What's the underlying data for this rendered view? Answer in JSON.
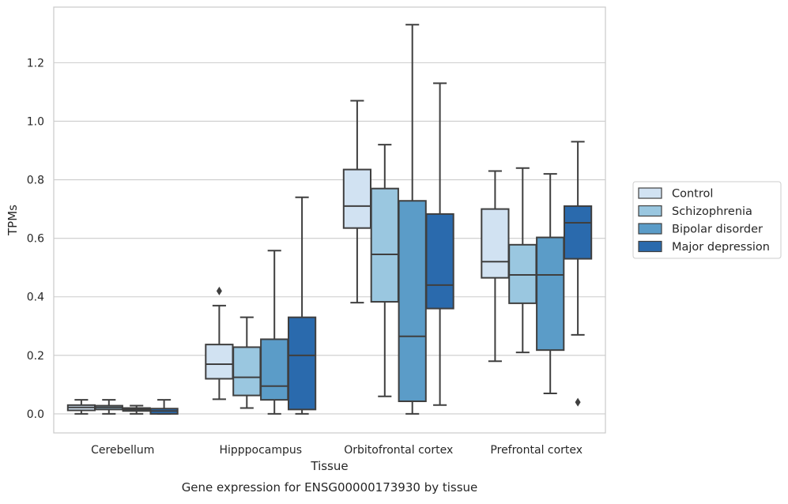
{
  "chart_data": {
    "type": "box",
    "title": "",
    "caption": "Gene expression for ENSG00000173930 by tissue",
    "xlabel": "Tissue",
    "ylabel": "TPMs",
    "ylim": [
      -0.065,
      1.39
    ],
    "yticks": [
      "0.0",
      "0.2",
      "0.4",
      "0.6",
      "0.8",
      "1.0",
      "1.2"
    ],
    "grid": "horizontal",
    "legend_position": "right",
    "categories": [
      "Cerebellum",
      "Hipppocampus",
      "Orbitofrontal cortex",
      "Prefrontal cortex"
    ],
    "series": [
      {
        "name": "Control",
        "color": "#d1e2f2",
        "boxes": [
          {
            "whislo": 0.0,
            "q1": 0.012,
            "med": 0.022,
            "q3": 0.03,
            "whishi": 0.048,
            "fliers": []
          },
          {
            "whislo": 0.05,
            "q1": 0.12,
            "med": 0.17,
            "q3": 0.237,
            "whishi": 0.37,
            "fliers": [
              0.42
            ]
          },
          {
            "whislo": 0.38,
            "q1": 0.635,
            "med": 0.71,
            "q3": 0.835,
            "whishi": 1.07,
            "fliers": []
          },
          {
            "whislo": 0.18,
            "q1": 0.465,
            "med": 0.52,
            "q3": 0.7,
            "whishi": 0.83,
            "fliers": []
          }
        ]
      },
      {
        "name": "Schizophrenia",
        "color": "#9ac7e0",
        "boxes": [
          {
            "whislo": 0.0,
            "q1": 0.015,
            "med": 0.022,
            "q3": 0.028,
            "whishi": 0.048,
            "fliers": []
          },
          {
            "whislo": 0.02,
            "q1": 0.063,
            "med": 0.125,
            "q3": 0.228,
            "whishi": 0.33,
            "fliers": []
          },
          {
            "whislo": 0.06,
            "q1": 0.383,
            "med": 0.545,
            "q3": 0.77,
            "whishi": 0.92,
            "fliers": []
          },
          {
            "whislo": 0.21,
            "q1": 0.378,
            "med": 0.475,
            "q3": 0.578,
            "whishi": 0.84,
            "fliers": []
          }
        ]
      },
      {
        "name": "Bipolar disorder",
        "color": "#5b9cc8",
        "boxes": [
          {
            "whislo": 0.0,
            "q1": 0.01,
            "med": 0.015,
            "q3": 0.02,
            "whishi": 0.028,
            "fliers": []
          },
          {
            "whislo": 0.0,
            "q1": 0.048,
            "med": 0.095,
            "q3": 0.255,
            "whishi": 0.558,
            "fliers": []
          },
          {
            "whislo": 0.0,
            "q1": 0.043,
            "med": 0.265,
            "q3": 0.728,
            "whishi": 1.33,
            "fliers": []
          },
          {
            "whislo": 0.07,
            "q1": 0.218,
            "med": 0.475,
            "q3": 0.603,
            "whishi": 0.82,
            "fliers": []
          }
        ]
      },
      {
        "name": "Major depression",
        "color": "#2a6aad",
        "boxes": [
          {
            "whislo": 0.0,
            "q1": 0.0,
            "med": 0.01,
            "q3": 0.018,
            "whishi": 0.048,
            "fliers": []
          },
          {
            "whislo": 0.0,
            "q1": 0.015,
            "med": 0.2,
            "q3": 0.33,
            "whishi": 0.74,
            "fliers": []
          },
          {
            "whislo": 0.03,
            "q1": 0.36,
            "med": 0.44,
            "q3": 0.683,
            "whishi": 1.13,
            "fliers": []
          },
          {
            "whislo": 0.27,
            "q1": 0.53,
            "med": 0.653,
            "q3": 0.71,
            "whishi": 0.93,
            "fliers": [
              0.04
            ]
          }
        ]
      }
    ]
  }
}
